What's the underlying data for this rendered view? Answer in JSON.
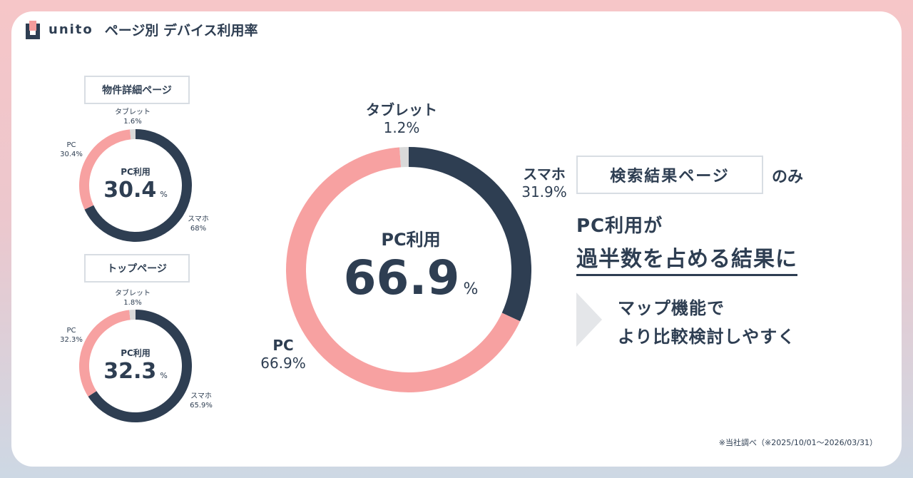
{
  "header": {
    "brand": "unito",
    "title": "ページ別 デバイス利用率"
  },
  "colors": {
    "smartphone": "#2e3e52",
    "pc": "#f7a1a1",
    "tablet": "#d9d9d9",
    "text": "#2e3e52"
  },
  "chart_data": [
    {
      "type": "pie",
      "id": "detail",
      "title": "物件詳細ページ",
      "center_title": "PC利用",
      "center_value": "30.4",
      "center_unit": "%",
      "slices": [
        {
          "label": "スマホ",
          "value": 68,
          "value_text": "68%"
        },
        {
          "label": "PC",
          "value": 30.4,
          "value_text": "30.4%"
        },
        {
          "label": "タブレット",
          "value": 1.6,
          "value_text": "1.6%"
        }
      ]
    },
    {
      "type": "pie",
      "id": "top",
      "title": "トップページ",
      "center_title": "PC利用",
      "center_value": "32.3",
      "center_unit": "%",
      "slices": [
        {
          "label": "スマホ",
          "value": 65.9,
          "value_text": "65.9%"
        },
        {
          "label": "PC",
          "value": 32.3,
          "value_text": "32.3%"
        },
        {
          "label": "タブレット",
          "value": 1.8,
          "value_text": "1.8%"
        }
      ]
    },
    {
      "type": "pie",
      "id": "search",
      "title": "",
      "center_title": "PC利用",
      "center_value": "66.9",
      "center_unit": "%",
      "slices": [
        {
          "label": "スマホ",
          "value": 31.9,
          "value_text": "31.9%"
        },
        {
          "label": "PC",
          "value": 66.9,
          "value_text": "66.9%"
        },
        {
          "label": "タブレット",
          "value": 1.2,
          "value_text": "1.2%"
        }
      ]
    }
  ],
  "right": {
    "box_label": "検索結果ページ",
    "only": "のみ",
    "line1": "PC利用が",
    "line2": "過半数を占める結果に",
    "point_line1": "マップ機能で",
    "point_line2": "より比較検討しやすく"
  },
  "footnote": "※当社調べ（※2025/10/01～2026/03/31）"
}
